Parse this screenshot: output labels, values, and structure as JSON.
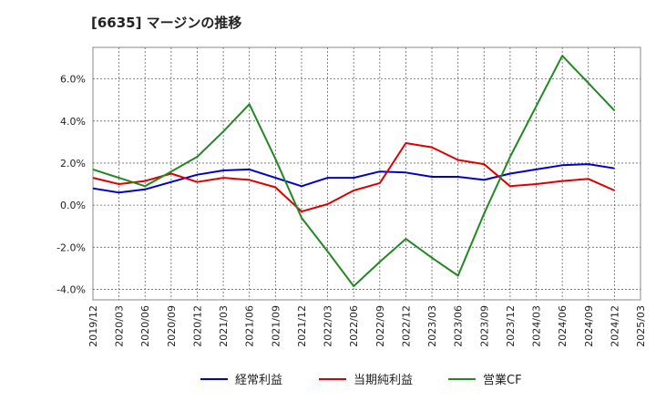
{
  "title": "[6635]  マージンの推移",
  "chart_data": {
    "type": "line",
    "categories": [
      "2019/12",
      "2020/03",
      "2020/06",
      "2020/09",
      "2020/12",
      "2021/03",
      "2021/06",
      "2021/09",
      "2021/12",
      "2022/03",
      "2022/06",
      "2022/09",
      "2022/12",
      "2023/03",
      "2023/06",
      "2023/09",
      "2023/12",
      "2024/03",
      "2024/06",
      "2024/09",
      "2024/12",
      "2025/03"
    ],
    "y_ticks": [
      "6.0%",
      "4.0%",
      "2.0%",
      "0.0%",
      "-2.0%",
      "-4.0%"
    ],
    "y_tick_values": [
      6,
      4,
      2,
      0,
      -2,
      -4
    ],
    "ylim": [
      -4.5,
      7.5
    ],
    "grid": true,
    "legend_position": "bottom",
    "series": [
      {
        "name": "経常利益",
        "color": "#0000cc",
        "values": [
          0.8,
          0.6,
          0.75,
          1.1,
          1.45,
          1.65,
          1.7,
          1.3,
          0.9,
          1.3,
          1.3,
          1.6,
          1.55,
          1.35,
          1.35,
          1.2,
          1.5,
          1.7,
          1.9,
          1.95,
          1.75,
          null
        ]
      },
      {
        "name": "当期純利益",
        "color": "#dd0000",
        "values": [
          1.3,
          1.0,
          1.15,
          1.5,
          1.1,
          1.3,
          1.2,
          0.85,
          -0.3,
          0.05,
          0.7,
          1.05,
          2.95,
          2.75,
          2.15,
          1.95,
          0.9,
          1.0,
          1.15,
          1.25,
          0.7,
          null
        ]
      },
      {
        "name": "営業CF",
        "color": "#228822",
        "values": [
          1.7,
          1.3,
          0.9,
          1.6,
          2.3,
          3.5,
          4.8,
          2.2,
          -0.6,
          -2.2,
          -3.85,
          -2.7,
          -1.6,
          -2.5,
          -3.35,
          -0.4,
          2.3,
          4.7,
          7.1,
          5.8,
          4.5,
          null
        ]
      }
    ]
  }
}
